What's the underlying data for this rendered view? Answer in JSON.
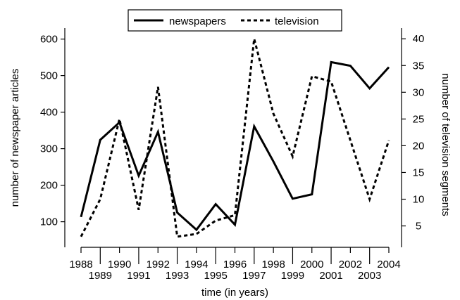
{
  "chart_data": {
    "type": "line",
    "x": [
      1988,
      1989,
      1990,
      1991,
      1992,
      1993,
      1994,
      1995,
      1996,
      1997,
      1998,
      1999,
      2000,
      2001,
      2002,
      2003,
      2004
    ],
    "xlabel": "time (in years)",
    "ylabel_left": "number of newspaper articles",
    "ylabel_right": "number of television segments",
    "ylim_left": [
      30,
      630
    ],
    "ylim_right": [
      1,
      42
    ],
    "yticks_left": [
      100,
      200,
      300,
      400,
      500,
      600
    ],
    "yticks_right": [
      5,
      10,
      15,
      20,
      25,
      30,
      35,
      40
    ],
    "grid": false,
    "legend_position": "top-center",
    "series": [
      {
        "name": "newspapers",
        "axis": "left",
        "style": "solid",
        "color": "#000000",
        "values": [
          113,
          324,
          372,
          226,
          346,
          125,
          78,
          148,
          92,
          361,
          265,
          163,
          175,
          537,
          527,
          465,
          523
        ]
      },
      {
        "name": "television",
        "axis": "right",
        "style": "dotted",
        "color": "#000000",
        "values": [
          3,
          10,
          25,
          8,
          31,
          3,
          3.5,
          6,
          7,
          40,
          26,
          18,
          33,
          32,
          21,
          10,
          21
        ]
      }
    ]
  }
}
